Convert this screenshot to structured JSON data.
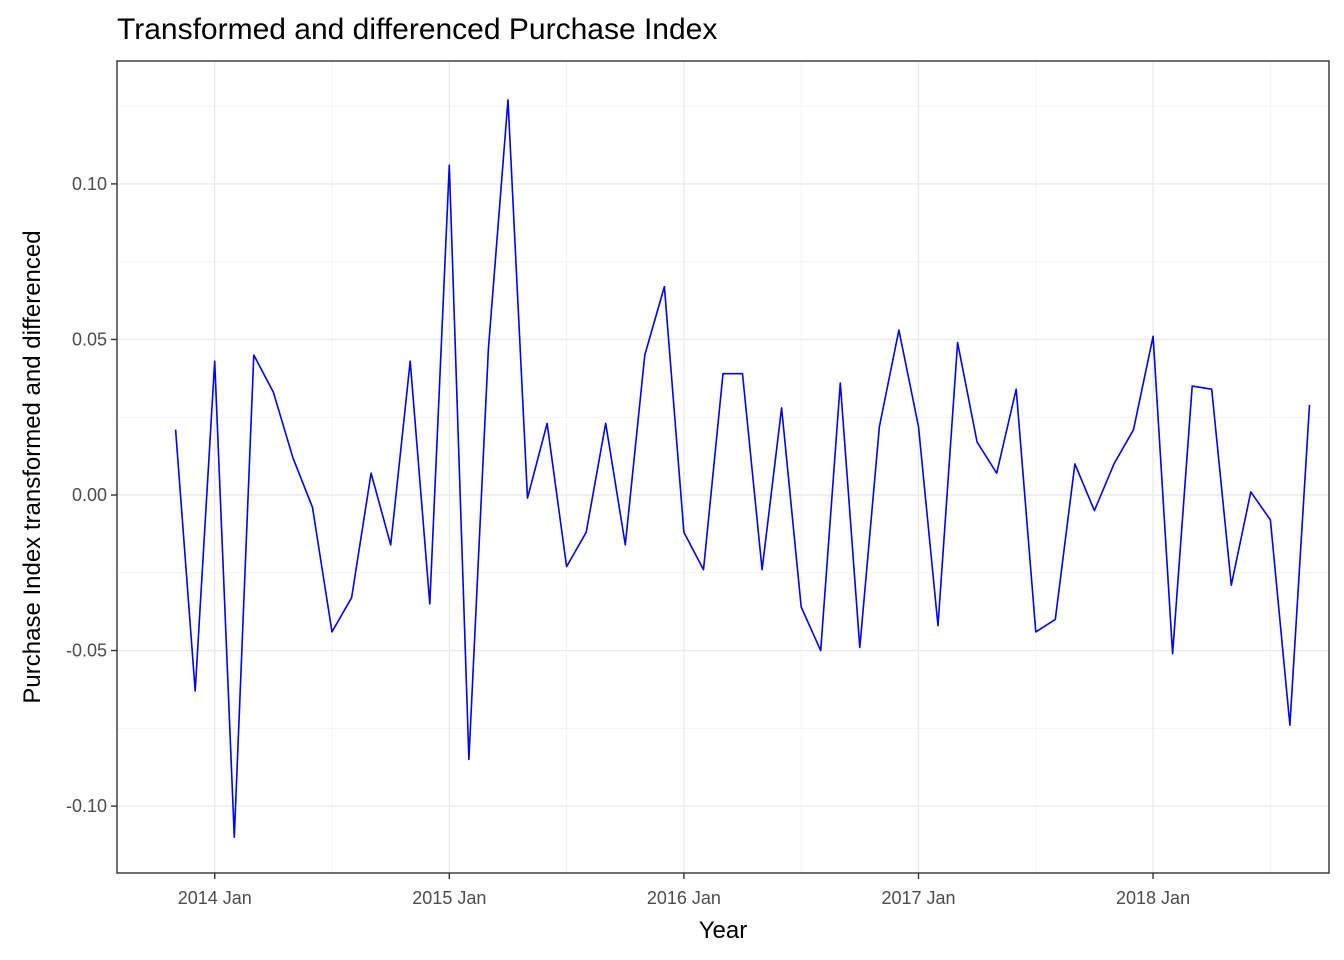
{
  "chart_data": {
    "type": "line",
    "title": "Transformed and differenced Purchase Index",
    "xlabel": "Year",
    "ylabel": "Purchase Index transformed and differenced",
    "x_ticks": [
      "2014 Jan",
      "2015 Jan",
      "2016 Jan",
      "2017 Jan",
      "2018 Jan"
    ],
    "y_ticks": [
      -0.1,
      -0.05,
      0.0,
      0.05,
      0.1
    ],
    "y_tick_labels": [
      "-0.10",
      "-0.05",
      "0.00",
      "0.05",
      "0.10"
    ],
    "xlim": [
      "2013 Aug",
      "2018 Oct"
    ],
    "ylim": [
      -0.1215,
      0.1395
    ],
    "grid": true,
    "series": [
      {
        "color": "#0000ff",
        "x": [
          "2013 Nov",
          "2013 Dec",
          "2014 Jan",
          "2014 Feb",
          "2014 Mar",
          "2014 Apr",
          "2014 May",
          "2014 Jun",
          "2014 Jul",
          "2014 Aug",
          "2014 Sep",
          "2014 Oct",
          "2014 Nov",
          "2014 Dec",
          "2015 Jan",
          "2015 Feb",
          "2015 Mar",
          "2015 Apr",
          "2015 May",
          "2015 Jun",
          "2015 Jul",
          "2015 Aug",
          "2015 Sep",
          "2015 Oct",
          "2015 Nov",
          "2015 Dec",
          "2016 Jan",
          "2016 Feb",
          "2016 Mar",
          "2016 Apr",
          "2016 May",
          "2016 Jun",
          "2016 Jul",
          "2016 Aug",
          "2016 Sep",
          "2016 Oct",
          "2016 Nov",
          "2016 Dec",
          "2017 Jan",
          "2017 Feb",
          "2017 Mar",
          "2017 Apr",
          "2017 May",
          "2017 Jun",
          "2017 Jul",
          "2017 Aug",
          "2017 Sep",
          "2017 Oct",
          "2017 Nov",
          "2017 Dec",
          "2018 Jan",
          "2018 Feb",
          "2018 Mar",
          "2018 Apr",
          "2018 May",
          "2018 Jun",
          "2018 Jul",
          "2018 Aug",
          "2018 Sep"
        ],
        "values": [
          0.021,
          -0.063,
          0.043,
          -0.11,
          0.045,
          0.033,
          0.012,
          -0.004,
          -0.044,
          -0.033,
          0.007,
          -0.016,
          0.043,
          -0.035,
          0.106,
          -0.085,
          0.047,
          0.127,
          -0.001,
          0.023,
          -0.023,
          -0.012,
          0.023,
          -0.016,
          0.045,
          0.067,
          -0.012,
          -0.024,
          0.039,
          0.039,
          -0.024,
          0.028,
          -0.036,
          -0.05,
          0.036,
          -0.049,
          0.022,
          0.053,
          0.022,
          -0.042,
          0.049,
          0.017,
          0.007,
          0.034,
          -0.044,
          -0.04,
          0.01,
          -0.005,
          0.01,
          0.021,
          0.051,
          -0.051,
          0.035,
          0.034,
          -0.029,
          0.001,
          -0.008,
          -0.074,
          0.029
        ]
      }
    ]
  }
}
